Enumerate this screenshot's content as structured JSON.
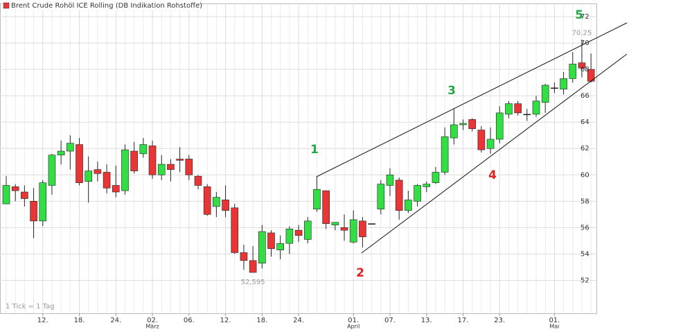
{
  "chart_data": {
    "type": "candlestick",
    "title": "Brent Crude Rohöl ICE Rolling (DB Indikation Rohstoffe)",
    "note": "1 Tick = 1 Tag",
    "categories": [
      null,
      null,
      null,
      null,
      "12.",
      null,
      null,
      null,
      "18.",
      null,
      null,
      null,
      "24.",
      null,
      null,
      null,
      "02.",
      null,
      null,
      null,
      "06.",
      null,
      null,
      null,
      "12.",
      null,
      null,
      null,
      "18.",
      null,
      null,
      null,
      "24.",
      null,
      null,
      null,
      null,
      null,
      "01.",
      null,
      null,
      null,
      "07.",
      null,
      null,
      null,
      "13.",
      null,
      null,
      null,
      "17.",
      null,
      null,
      null,
      "23.",
      null,
      null,
      null,
      null,
      null,
      "01.",
      null,
      null,
      null,
      null
    ],
    "months": [
      null,
      null,
      null,
      null,
      null,
      null,
      null,
      null,
      null,
      null,
      null,
      null,
      null,
      null,
      null,
      null,
      "März",
      null,
      null,
      null,
      null,
      null,
      null,
      null,
      null,
      null,
      null,
      null,
      null,
      null,
      null,
      null,
      null,
      null,
      null,
      null,
      null,
      null,
      "April",
      null,
      null,
      null,
      null,
      null,
      null,
      null,
      null,
      null,
      null,
      null,
      null,
      null,
      null,
      null,
      null,
      null,
      null,
      null,
      null,
      null,
      "Mai",
      null,
      null,
      null,
      null
    ],
    "open": [
      57.8,
      59.1,
      58.7,
      58.0,
      56.5,
      59.2,
      61.5,
      61.8,
      62.3,
      59.5,
      60.4,
      60.2,
      59.2,
      58.8,
      61.8,
      61.6,
      62.2,
      60.0,
      60.8,
      61.2,
      61.2,
      59.9,
      59.1,
      57.6,
      58.1,
      57.5,
      54.1,
      53.5,
      53.3,
      55.6,
      54.3,
      54.8,
      55.8,
      55.1,
      57.4,
      58.8,
      56.2,
      56.0,
      54.9,
      56.5,
      56.3,
      57.4,
      59.2,
      59.6,
      57.3,
      58.0,
      59.1,
      59.4,
      60.2,
      62.8,
      63.8,
      64.2,
      63.4,
      62.0,
      62.7,
      64.6,
      65.4,
      64.6,
      64.6,
      65.5,
      66.6,
      66.5,
      67.3,
      68.5,
      68.0
    ],
    "high": [
      59.9,
      59.3,
      59.2,
      59.0,
      59.6,
      61.6,
      62.6,
      63.0,
      62.8,
      61.4,
      61.0,
      60.8,
      60.7,
      62.3,
      62.5,
      62.8,
      62.6,
      61.5,
      61.2,
      62.1,
      61.5,
      60.0,
      59.3,
      58.7,
      59.2,
      57.8,
      54.7,
      54.6,
      56.2,
      55.8,
      55.4,
      56.1,
      56.2,
      56.8,
      59.9,
      58.8,
      56.4,
      57.0,
      57.3,
      56.8,
      56.3,
      59.6,
      60.5,
      59.8,
      58.8,
      59.3,
      59.5,
      60.6,
      63.6,
      65.0,
      64.2,
      64.3,
      63.7,
      63.6,
      65.2,
      65.6,
      65.6,
      65.0,
      66.0,
      66.9,
      67.0,
      67.8,
      69.3,
      70.25,
      69.2
    ],
    "low": [
      57.8,
      58.0,
      57.6,
      55.2,
      56.1,
      58.5,
      60.8,
      60.4,
      59.2,
      57.9,
      59.5,
      58.6,
      58.3,
      58.5,
      60.1,
      61.3,
      59.7,
      59.6,
      59.5,
      60.2,
      59.6,
      58.9,
      56.9,
      56.8,
      56.8,
      54.0,
      52.8,
      52.595,
      52.9,
      53.8,
      53.6,
      54.0,
      54.9,
      54.8,
      57.2,
      55.9,
      55.8,
      55.0,
      54.8,
      54.5,
      56.3,
      57.0,
      58.4,
      56.6,
      57.1,
      57.6,
      58.7,
      59.3,
      60.0,
      62.3,
      63.4,
      63.3,
      61.7,
      61.6,
      62.4,
      64.3,
      64.5,
      64.1,
      64.4,
      64.7,
      66.2,
      66.1,
      67.0,
      67.4,
      67.0
    ],
    "close": [
      59.2,
      58.8,
      58.2,
      56.5,
      59.4,
      61.5,
      61.8,
      62.4,
      59.4,
      60.3,
      60.1,
      59.0,
      58.7,
      61.9,
      60.3,
      62.3,
      60.0,
      60.8,
      60.4,
      61.1,
      60.0,
      59.2,
      57.0,
      58.3,
      57.3,
      54.1,
      53.5,
      52.6,
      55.7,
      54.4,
      54.8,
      55.9,
      55.4,
      56.5,
      58.9,
      56.3,
      56.4,
      55.8,
      56.6,
      55.3,
      56.3,
      59.3,
      60.0,
      57.3,
      58.1,
      59.2,
      59.3,
      60.2,
      62.9,
      63.8,
      63.9,
      63.5,
      61.9,
      62.7,
      64.7,
      65.4,
      64.7,
      64.6,
      65.6,
      66.8,
      66.6,
      67.3,
      68.4,
      68.1,
      67.1
    ],
    "up_color": "#33dd44",
    "down_color": "#e83535",
    "legend_color": "#e83535",
    "ylim": [
      49.5,
      73
    ],
    "yticks": [
      52,
      54,
      56,
      58,
      60,
      62,
      64,
      66,
      68,
      70,
      72
    ],
    "grid": true,
    "low_label": {
      "value": 52.595,
      "label": "52,595"
    },
    "high_label": {
      "value": 70.25,
      "label": "70,25"
    },
    "waves": [
      {
        "label": "1",
        "color": "#22aa44"
      },
      {
        "label": "2",
        "color": "#dd2222"
      },
      {
        "label": "3",
        "color": "#22aa44"
      },
      {
        "label": "4",
        "color": "#dd2222"
      },
      {
        "label": "5",
        "color": "#22aa44"
      }
    ]
  }
}
